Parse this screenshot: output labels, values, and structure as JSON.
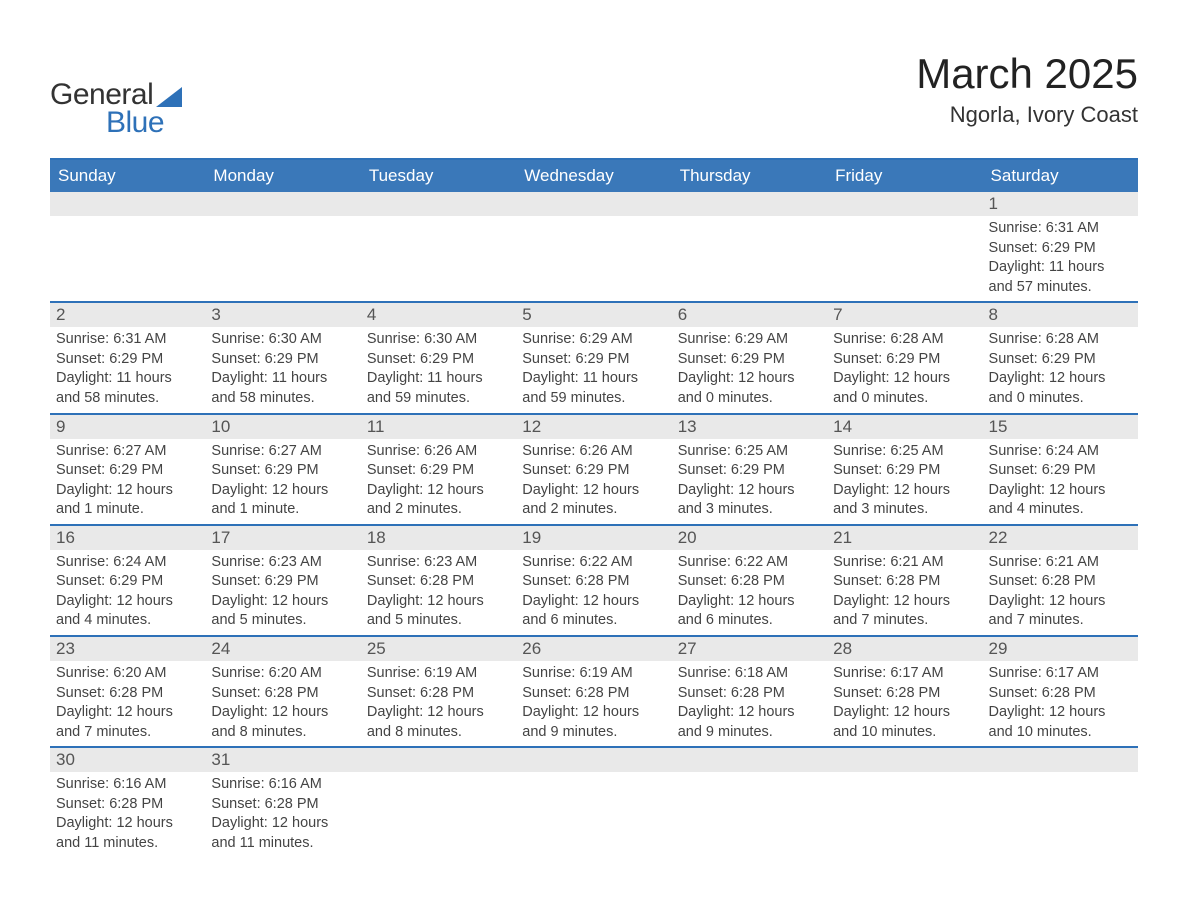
{
  "brand": {
    "general": "General",
    "blue": "Blue"
  },
  "title": "March 2025",
  "location": "Ngorla, Ivory Coast",
  "colors": {
    "header_bg": "#3a78b9",
    "header_text": "#ffffff",
    "rule": "#2e71b8",
    "daynum_bg": "#e9e9e9",
    "body_text": "#444444",
    "logo_blue": "#2e71b8"
  },
  "typography": {
    "title_fontsize": 42,
    "location_fontsize": 22,
    "weekday_fontsize": 17,
    "daynum_fontsize": 17,
    "body_fontsize": 14.5
  },
  "weekdays": [
    "Sunday",
    "Monday",
    "Tuesday",
    "Wednesday",
    "Thursday",
    "Friday",
    "Saturday"
  ],
  "weeks": [
    [
      {
        "num": "",
        "sunrise": "",
        "sunset": "",
        "daylight": ""
      },
      {
        "num": "",
        "sunrise": "",
        "sunset": "",
        "daylight": ""
      },
      {
        "num": "",
        "sunrise": "",
        "sunset": "",
        "daylight": ""
      },
      {
        "num": "",
        "sunrise": "",
        "sunset": "",
        "daylight": ""
      },
      {
        "num": "",
        "sunrise": "",
        "sunset": "",
        "daylight": ""
      },
      {
        "num": "",
        "sunrise": "",
        "sunset": "",
        "daylight": ""
      },
      {
        "num": "1",
        "sunrise": "Sunrise: 6:31 AM",
        "sunset": "Sunset: 6:29 PM",
        "daylight": "Daylight: 11 hours and 57 minutes."
      }
    ],
    [
      {
        "num": "2",
        "sunrise": "Sunrise: 6:31 AM",
        "sunset": "Sunset: 6:29 PM",
        "daylight": "Daylight: 11 hours and 58 minutes."
      },
      {
        "num": "3",
        "sunrise": "Sunrise: 6:30 AM",
        "sunset": "Sunset: 6:29 PM",
        "daylight": "Daylight: 11 hours and 58 minutes."
      },
      {
        "num": "4",
        "sunrise": "Sunrise: 6:30 AM",
        "sunset": "Sunset: 6:29 PM",
        "daylight": "Daylight: 11 hours and 59 minutes."
      },
      {
        "num": "5",
        "sunrise": "Sunrise: 6:29 AM",
        "sunset": "Sunset: 6:29 PM",
        "daylight": "Daylight: 11 hours and 59 minutes."
      },
      {
        "num": "6",
        "sunrise": "Sunrise: 6:29 AM",
        "sunset": "Sunset: 6:29 PM",
        "daylight": "Daylight: 12 hours and 0 minutes."
      },
      {
        "num": "7",
        "sunrise": "Sunrise: 6:28 AM",
        "sunset": "Sunset: 6:29 PM",
        "daylight": "Daylight: 12 hours and 0 minutes."
      },
      {
        "num": "8",
        "sunrise": "Sunrise: 6:28 AM",
        "sunset": "Sunset: 6:29 PM",
        "daylight": "Daylight: 12 hours and 0 minutes."
      }
    ],
    [
      {
        "num": "9",
        "sunrise": "Sunrise: 6:27 AM",
        "sunset": "Sunset: 6:29 PM",
        "daylight": "Daylight: 12 hours and 1 minute."
      },
      {
        "num": "10",
        "sunrise": "Sunrise: 6:27 AM",
        "sunset": "Sunset: 6:29 PM",
        "daylight": "Daylight: 12 hours and 1 minute."
      },
      {
        "num": "11",
        "sunrise": "Sunrise: 6:26 AM",
        "sunset": "Sunset: 6:29 PM",
        "daylight": "Daylight: 12 hours and 2 minutes."
      },
      {
        "num": "12",
        "sunrise": "Sunrise: 6:26 AM",
        "sunset": "Sunset: 6:29 PM",
        "daylight": "Daylight: 12 hours and 2 minutes."
      },
      {
        "num": "13",
        "sunrise": "Sunrise: 6:25 AM",
        "sunset": "Sunset: 6:29 PM",
        "daylight": "Daylight: 12 hours and 3 minutes."
      },
      {
        "num": "14",
        "sunrise": "Sunrise: 6:25 AM",
        "sunset": "Sunset: 6:29 PM",
        "daylight": "Daylight: 12 hours and 3 minutes."
      },
      {
        "num": "15",
        "sunrise": "Sunrise: 6:24 AM",
        "sunset": "Sunset: 6:29 PM",
        "daylight": "Daylight: 12 hours and 4 minutes."
      }
    ],
    [
      {
        "num": "16",
        "sunrise": "Sunrise: 6:24 AM",
        "sunset": "Sunset: 6:29 PM",
        "daylight": "Daylight: 12 hours and 4 minutes."
      },
      {
        "num": "17",
        "sunrise": "Sunrise: 6:23 AM",
        "sunset": "Sunset: 6:29 PM",
        "daylight": "Daylight: 12 hours and 5 minutes."
      },
      {
        "num": "18",
        "sunrise": "Sunrise: 6:23 AM",
        "sunset": "Sunset: 6:28 PM",
        "daylight": "Daylight: 12 hours and 5 minutes."
      },
      {
        "num": "19",
        "sunrise": "Sunrise: 6:22 AM",
        "sunset": "Sunset: 6:28 PM",
        "daylight": "Daylight: 12 hours and 6 minutes."
      },
      {
        "num": "20",
        "sunrise": "Sunrise: 6:22 AM",
        "sunset": "Sunset: 6:28 PM",
        "daylight": "Daylight: 12 hours and 6 minutes."
      },
      {
        "num": "21",
        "sunrise": "Sunrise: 6:21 AM",
        "sunset": "Sunset: 6:28 PM",
        "daylight": "Daylight: 12 hours and 7 minutes."
      },
      {
        "num": "22",
        "sunrise": "Sunrise: 6:21 AM",
        "sunset": "Sunset: 6:28 PM",
        "daylight": "Daylight: 12 hours and 7 minutes."
      }
    ],
    [
      {
        "num": "23",
        "sunrise": "Sunrise: 6:20 AM",
        "sunset": "Sunset: 6:28 PM",
        "daylight": "Daylight: 12 hours and 7 minutes."
      },
      {
        "num": "24",
        "sunrise": "Sunrise: 6:20 AM",
        "sunset": "Sunset: 6:28 PM",
        "daylight": "Daylight: 12 hours and 8 minutes."
      },
      {
        "num": "25",
        "sunrise": "Sunrise: 6:19 AM",
        "sunset": "Sunset: 6:28 PM",
        "daylight": "Daylight: 12 hours and 8 minutes."
      },
      {
        "num": "26",
        "sunrise": "Sunrise: 6:19 AM",
        "sunset": "Sunset: 6:28 PM",
        "daylight": "Daylight: 12 hours and 9 minutes."
      },
      {
        "num": "27",
        "sunrise": "Sunrise: 6:18 AM",
        "sunset": "Sunset: 6:28 PM",
        "daylight": "Daylight: 12 hours and 9 minutes."
      },
      {
        "num": "28",
        "sunrise": "Sunrise: 6:17 AM",
        "sunset": "Sunset: 6:28 PM",
        "daylight": "Daylight: 12 hours and 10 minutes."
      },
      {
        "num": "29",
        "sunrise": "Sunrise: 6:17 AM",
        "sunset": "Sunset: 6:28 PM",
        "daylight": "Daylight: 12 hours and 10 minutes."
      }
    ],
    [
      {
        "num": "30",
        "sunrise": "Sunrise: 6:16 AM",
        "sunset": "Sunset: 6:28 PM",
        "daylight": "Daylight: 12 hours and 11 minutes."
      },
      {
        "num": "31",
        "sunrise": "Sunrise: 6:16 AM",
        "sunset": "Sunset: 6:28 PM",
        "daylight": "Daylight: 12 hours and 11 minutes."
      },
      {
        "num": "",
        "sunrise": "",
        "sunset": "",
        "daylight": ""
      },
      {
        "num": "",
        "sunrise": "",
        "sunset": "",
        "daylight": ""
      },
      {
        "num": "",
        "sunrise": "",
        "sunset": "",
        "daylight": ""
      },
      {
        "num": "",
        "sunrise": "",
        "sunset": "",
        "daylight": ""
      },
      {
        "num": "",
        "sunrise": "",
        "sunset": "",
        "daylight": ""
      }
    ]
  ]
}
